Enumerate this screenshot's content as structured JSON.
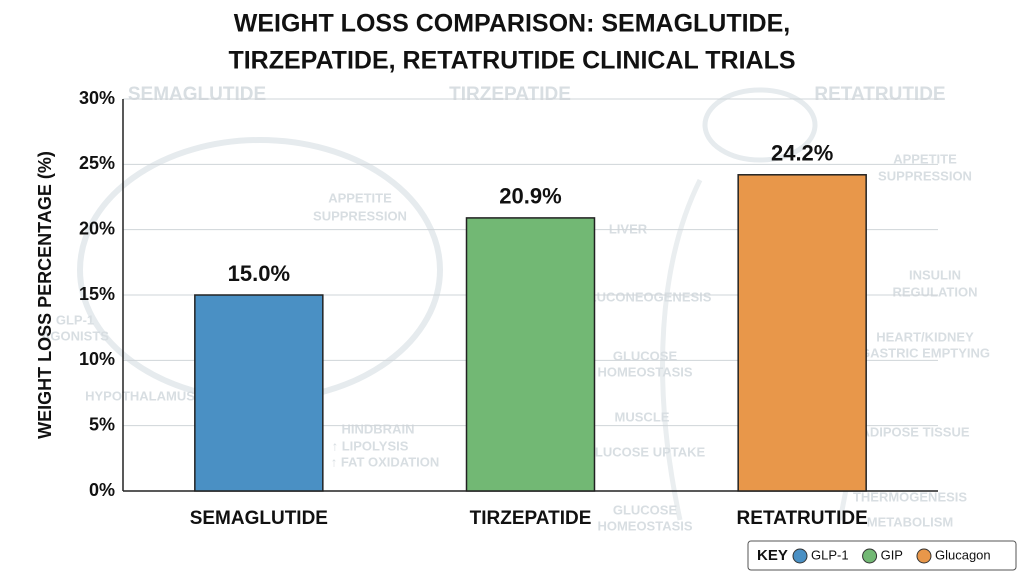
{
  "chart_data": {
    "type": "bar",
    "title": [
      "WEIGHT LOSS COMPARISON: SEMAGLUTIDE,",
      "TIRZEPATIDE, RETATRUTIDE CLINICAL TRIALS"
    ],
    "y_label": "WEIGHT LOSS PERCENTAGE (%)",
    "categories": [
      "SEMAGLUTIDE",
      "TIRZEPATIDE",
      "RETATRUTIDE"
    ],
    "values": [
      15.0,
      20.9,
      24.2
    ],
    "value_labels": [
      "15.0%",
      "20.9%",
      "24.2%"
    ],
    "colors": [
      "#4a90c4",
      "#72b874",
      "#e8974a"
    ],
    "ylim": [
      0,
      30
    ],
    "yticks": [
      {
        "value": 0,
        "label": "0%"
      },
      {
        "value": 5,
        "label": "5%"
      },
      {
        "value": 10,
        "label": "10%"
      },
      {
        "value": 15,
        "label": "15%"
      },
      {
        "value": 20,
        "label": "20%"
      },
      {
        "value": 25,
        "label": "25%"
      },
      {
        "value": 30,
        "label": "30%"
      }
    ],
    "grid": true,
    "legend": {
      "title": "KEY",
      "items": [
        {
          "name": "GLP-1",
          "color": "#4a90c4"
        },
        {
          "name": "GIP",
          "color": "#72b874"
        },
        {
          "name": "Glucagon",
          "color": "#e8974a"
        }
      ]
    },
    "annotations": [
      "SEMAGLUTIDE",
      "TIRZEPATIDE",
      "RETATRUTIDE",
      "APPETITE",
      "SUPPRESSION",
      "LIVER",
      "GLUCONEOGENESIS",
      "GLUCOSE",
      "HOMEOSTASIS",
      "MUSCLE",
      "GLUCOSE UPTAKE",
      "GLUCOSE",
      "HOMEOSTASIS",
      "HINDBRAIN",
      "↑ LIPOLYSIS",
      "↑ FAT OXIDATION",
      "HYPOTHALAMUS",
      "GLP-1",
      "AGONISTS",
      "APPETITE",
      "SUPPRESSION",
      "INSULIN",
      "REGULATION",
      "HEART/KIDNEY",
      "GASTRIC EMPTYING",
      "ADIPOSE TISSUE",
      "THERMOGENESIS",
      "METABOLISM"
    ]
  }
}
